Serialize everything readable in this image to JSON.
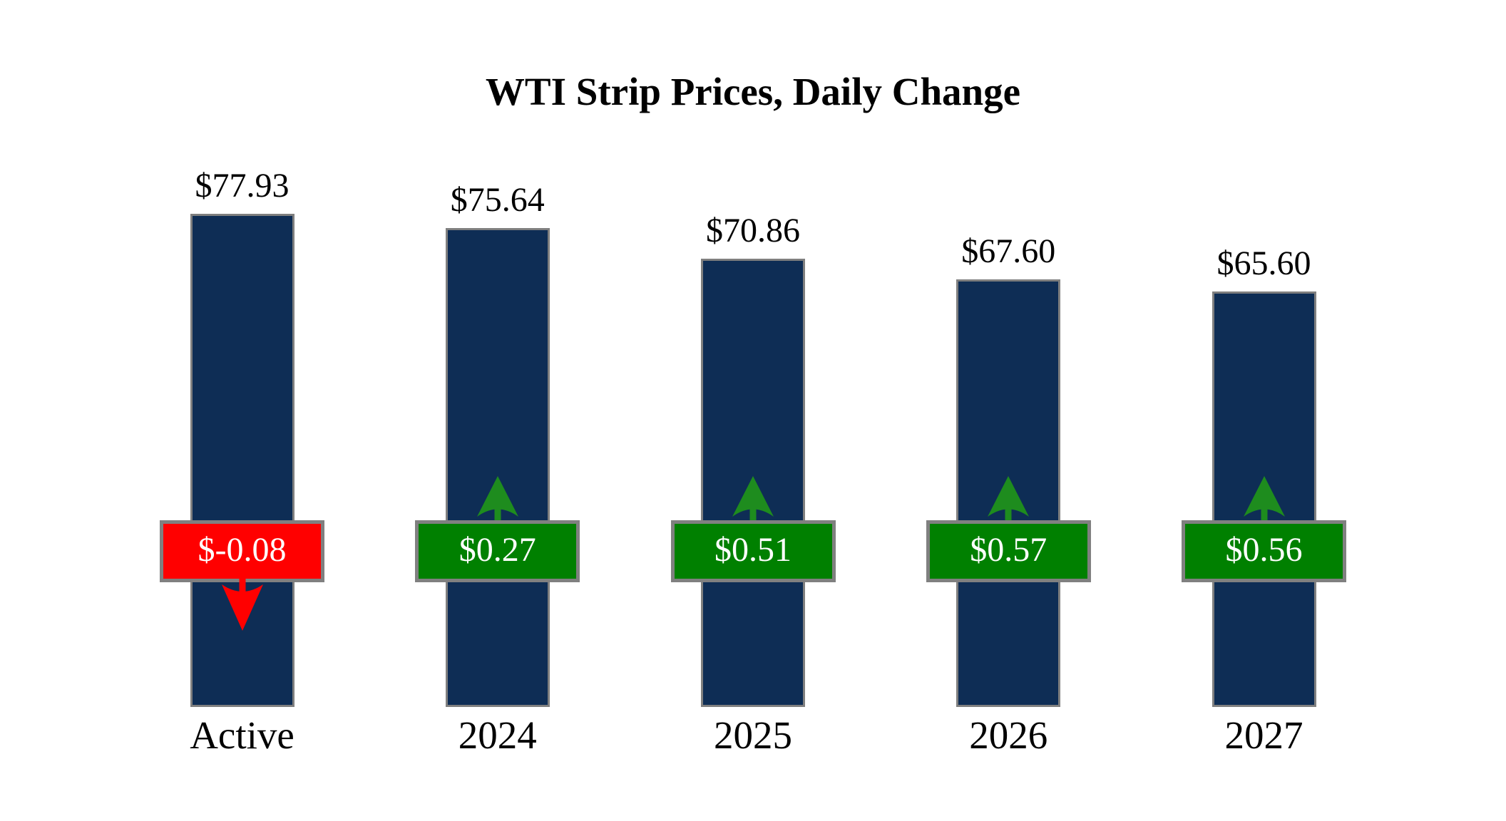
{
  "title": "WTI Strip Prices, Daily Change",
  "chart_data": {
    "type": "bar",
    "title": "WTI Strip Prices, Daily Change",
    "categories": [
      "Active",
      "2024",
      "2025",
      "2026",
      "2027"
    ],
    "series": [
      {
        "name": "Strip Price",
        "values": [
          77.93,
          75.64,
          70.86,
          67.6,
          65.6
        ]
      },
      {
        "name": "Daily Change",
        "values": [
          -0.08,
          0.27,
          0.51,
          0.57,
          0.56
        ]
      }
    ],
    "bars": [
      {
        "category": "Active",
        "price": 77.93,
        "price_label": "$77.93",
        "change": -0.08,
        "change_label": "$-0.08",
        "direction": "down"
      },
      {
        "category": "2024",
        "price": 75.64,
        "price_label": "$75.64",
        "change": 0.27,
        "change_label": "$0.27",
        "direction": "up"
      },
      {
        "category": "2025",
        "price": 70.86,
        "price_label": "$70.86",
        "change": 0.51,
        "change_label": "$0.51",
        "direction": "up"
      },
      {
        "category": "2026",
        "price": 67.6,
        "price_label": "$67.60",
        "change": 0.57,
        "change_label": "$0.57",
        "direction": "up"
      },
      {
        "category": "2027",
        "price": 65.6,
        "price_label": "$65.60",
        "change": 0.56,
        "change_label": "$0.56",
        "direction": "up"
      }
    ],
    "ylim": [
      0,
      80
    ],
    "grid": false,
    "legend": false,
    "axes_visible": false
  },
  "colors": {
    "background": "#FFFFFF",
    "bar_fill": "#0E2D55",
    "bar_border": "#7F7F7F",
    "positive_fill": "#008000",
    "negative_fill": "#FF0000",
    "badge_border": "#808080",
    "up_arrow": "#1E8C1E",
    "down_arrow": "#FF0000",
    "label_text": "#000000",
    "badge_text": "#FFFFFF"
  }
}
